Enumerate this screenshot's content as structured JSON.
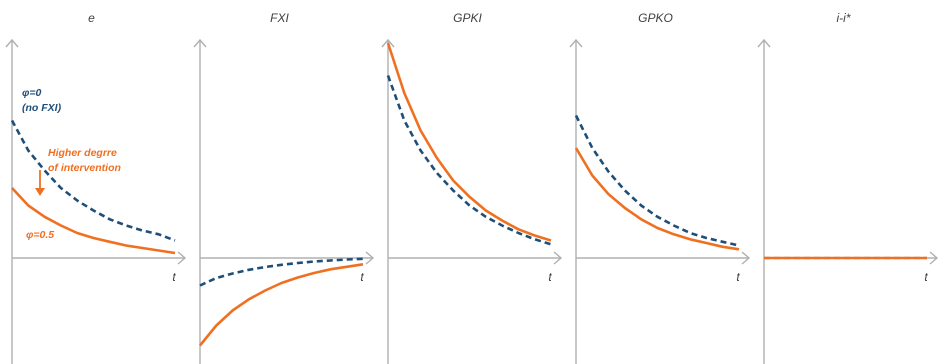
{
  "chart_data": [
    {
      "type": "line",
      "title": "e",
      "xlabel": "t",
      "ylim": [
        -1,
        1
      ],
      "x": [
        0,
        1,
        2,
        3,
        4,
        5,
        6,
        7,
        8,
        9,
        10
      ],
      "series": [
        {
          "name": "φ=0 (no FXI)",
          "style": "dashed",
          "color": "#1f4e79",
          "values": [
            0.55,
            0.43,
            0.35,
            0.28,
            0.23,
            0.19,
            0.155,
            0.13,
            0.11,
            0.095,
            0.07
          ]
        },
        {
          "name": "φ=0.5",
          "style": "solid",
          "color": "#f07022",
          "values": [
            0.28,
            0.21,
            0.165,
            0.13,
            0.1,
            0.08,
            0.065,
            0.05,
            0.04,
            0.03,
            0.02
          ]
        }
      ],
      "annotations": [
        {
          "text": "φ=0",
          "color": "#1f4e79"
        },
        {
          "text": "(no FXI)",
          "color": "#1f4e79"
        },
        {
          "text": "Higher degrre",
          "color": "#f07022"
        },
        {
          "text": "of intervention",
          "color": "#f07022"
        },
        {
          "text": "φ=0.5",
          "color": "#f07022"
        }
      ]
    },
    {
      "type": "line",
      "title": "FXI",
      "xlabel": "t",
      "ylim": [
        -1,
        1
      ],
      "x": [
        0,
        1,
        2,
        3,
        4,
        5,
        6,
        7,
        8,
        9,
        10
      ],
      "series": [
        {
          "name": "φ=0 (no FXI)",
          "style": "dashed",
          "color": "#1f4e79",
          "values": [
            -0.11,
            -0.08,
            -0.062,
            -0.047,
            -0.036,
            -0.027,
            -0.02,
            -0.014,
            -0.01,
            -0.006,
            -0.003
          ]
        },
        {
          "name": "φ=0.5",
          "style": "solid",
          "color": "#f07022",
          "values": [
            -0.35,
            -0.27,
            -0.21,
            -0.165,
            -0.13,
            -0.1,
            -0.078,
            -0.06,
            -0.045,
            -0.035,
            -0.025
          ]
        }
      ]
    },
    {
      "type": "line",
      "title": "GPKI",
      "xlabel": "t",
      "ylim": [
        -1,
        1
      ],
      "x": [
        0,
        1,
        2,
        3,
        4,
        5,
        6,
        7,
        8,
        9,
        10
      ],
      "series": [
        {
          "name": "φ=0 (no FXI)",
          "style": "dashed",
          "color": "#1f4e79",
          "values": [
            0.73,
            0.55,
            0.43,
            0.34,
            0.27,
            0.21,
            0.165,
            0.13,
            0.1,
            0.075,
            0.055
          ]
        },
        {
          "name": "φ=0.5",
          "style": "solid",
          "color": "#f07022",
          "values": [
            0.86,
            0.66,
            0.51,
            0.4,
            0.31,
            0.245,
            0.19,
            0.15,
            0.115,
            0.09,
            0.07
          ]
        }
      ]
    },
    {
      "type": "line",
      "title": "GPKO",
      "xlabel": "t",
      "ylim": [
        -1,
        1
      ],
      "x": [
        0,
        1,
        2,
        3,
        4,
        5,
        6,
        7,
        8,
        9,
        10
      ],
      "series": [
        {
          "name": "φ=0 (no FXI)",
          "style": "dashed",
          "color": "#1f4e79",
          "values": [
            0.57,
            0.44,
            0.345,
            0.27,
            0.21,
            0.165,
            0.13,
            0.1,
            0.08,
            0.065,
            0.05
          ]
        },
        {
          "name": "φ=0.5",
          "style": "solid",
          "color": "#f07022",
          "values": [
            0.44,
            0.33,
            0.255,
            0.2,
            0.155,
            0.12,
            0.095,
            0.075,
            0.06,
            0.045,
            0.035
          ]
        }
      ]
    },
    {
      "type": "line",
      "title": "i-i*",
      "xlabel": "t",
      "ylim": [
        -1,
        1
      ],
      "x": [
        0,
        10
      ],
      "series": [
        {
          "name": "φ=0 (no FXI)",
          "style": "dashed",
          "color": "#1f4e79",
          "values": [
            0,
            0
          ]
        },
        {
          "name": "φ=0.5",
          "style": "solid",
          "color": "#f07022",
          "values": [
            0,
            0
          ]
        }
      ]
    }
  ]
}
